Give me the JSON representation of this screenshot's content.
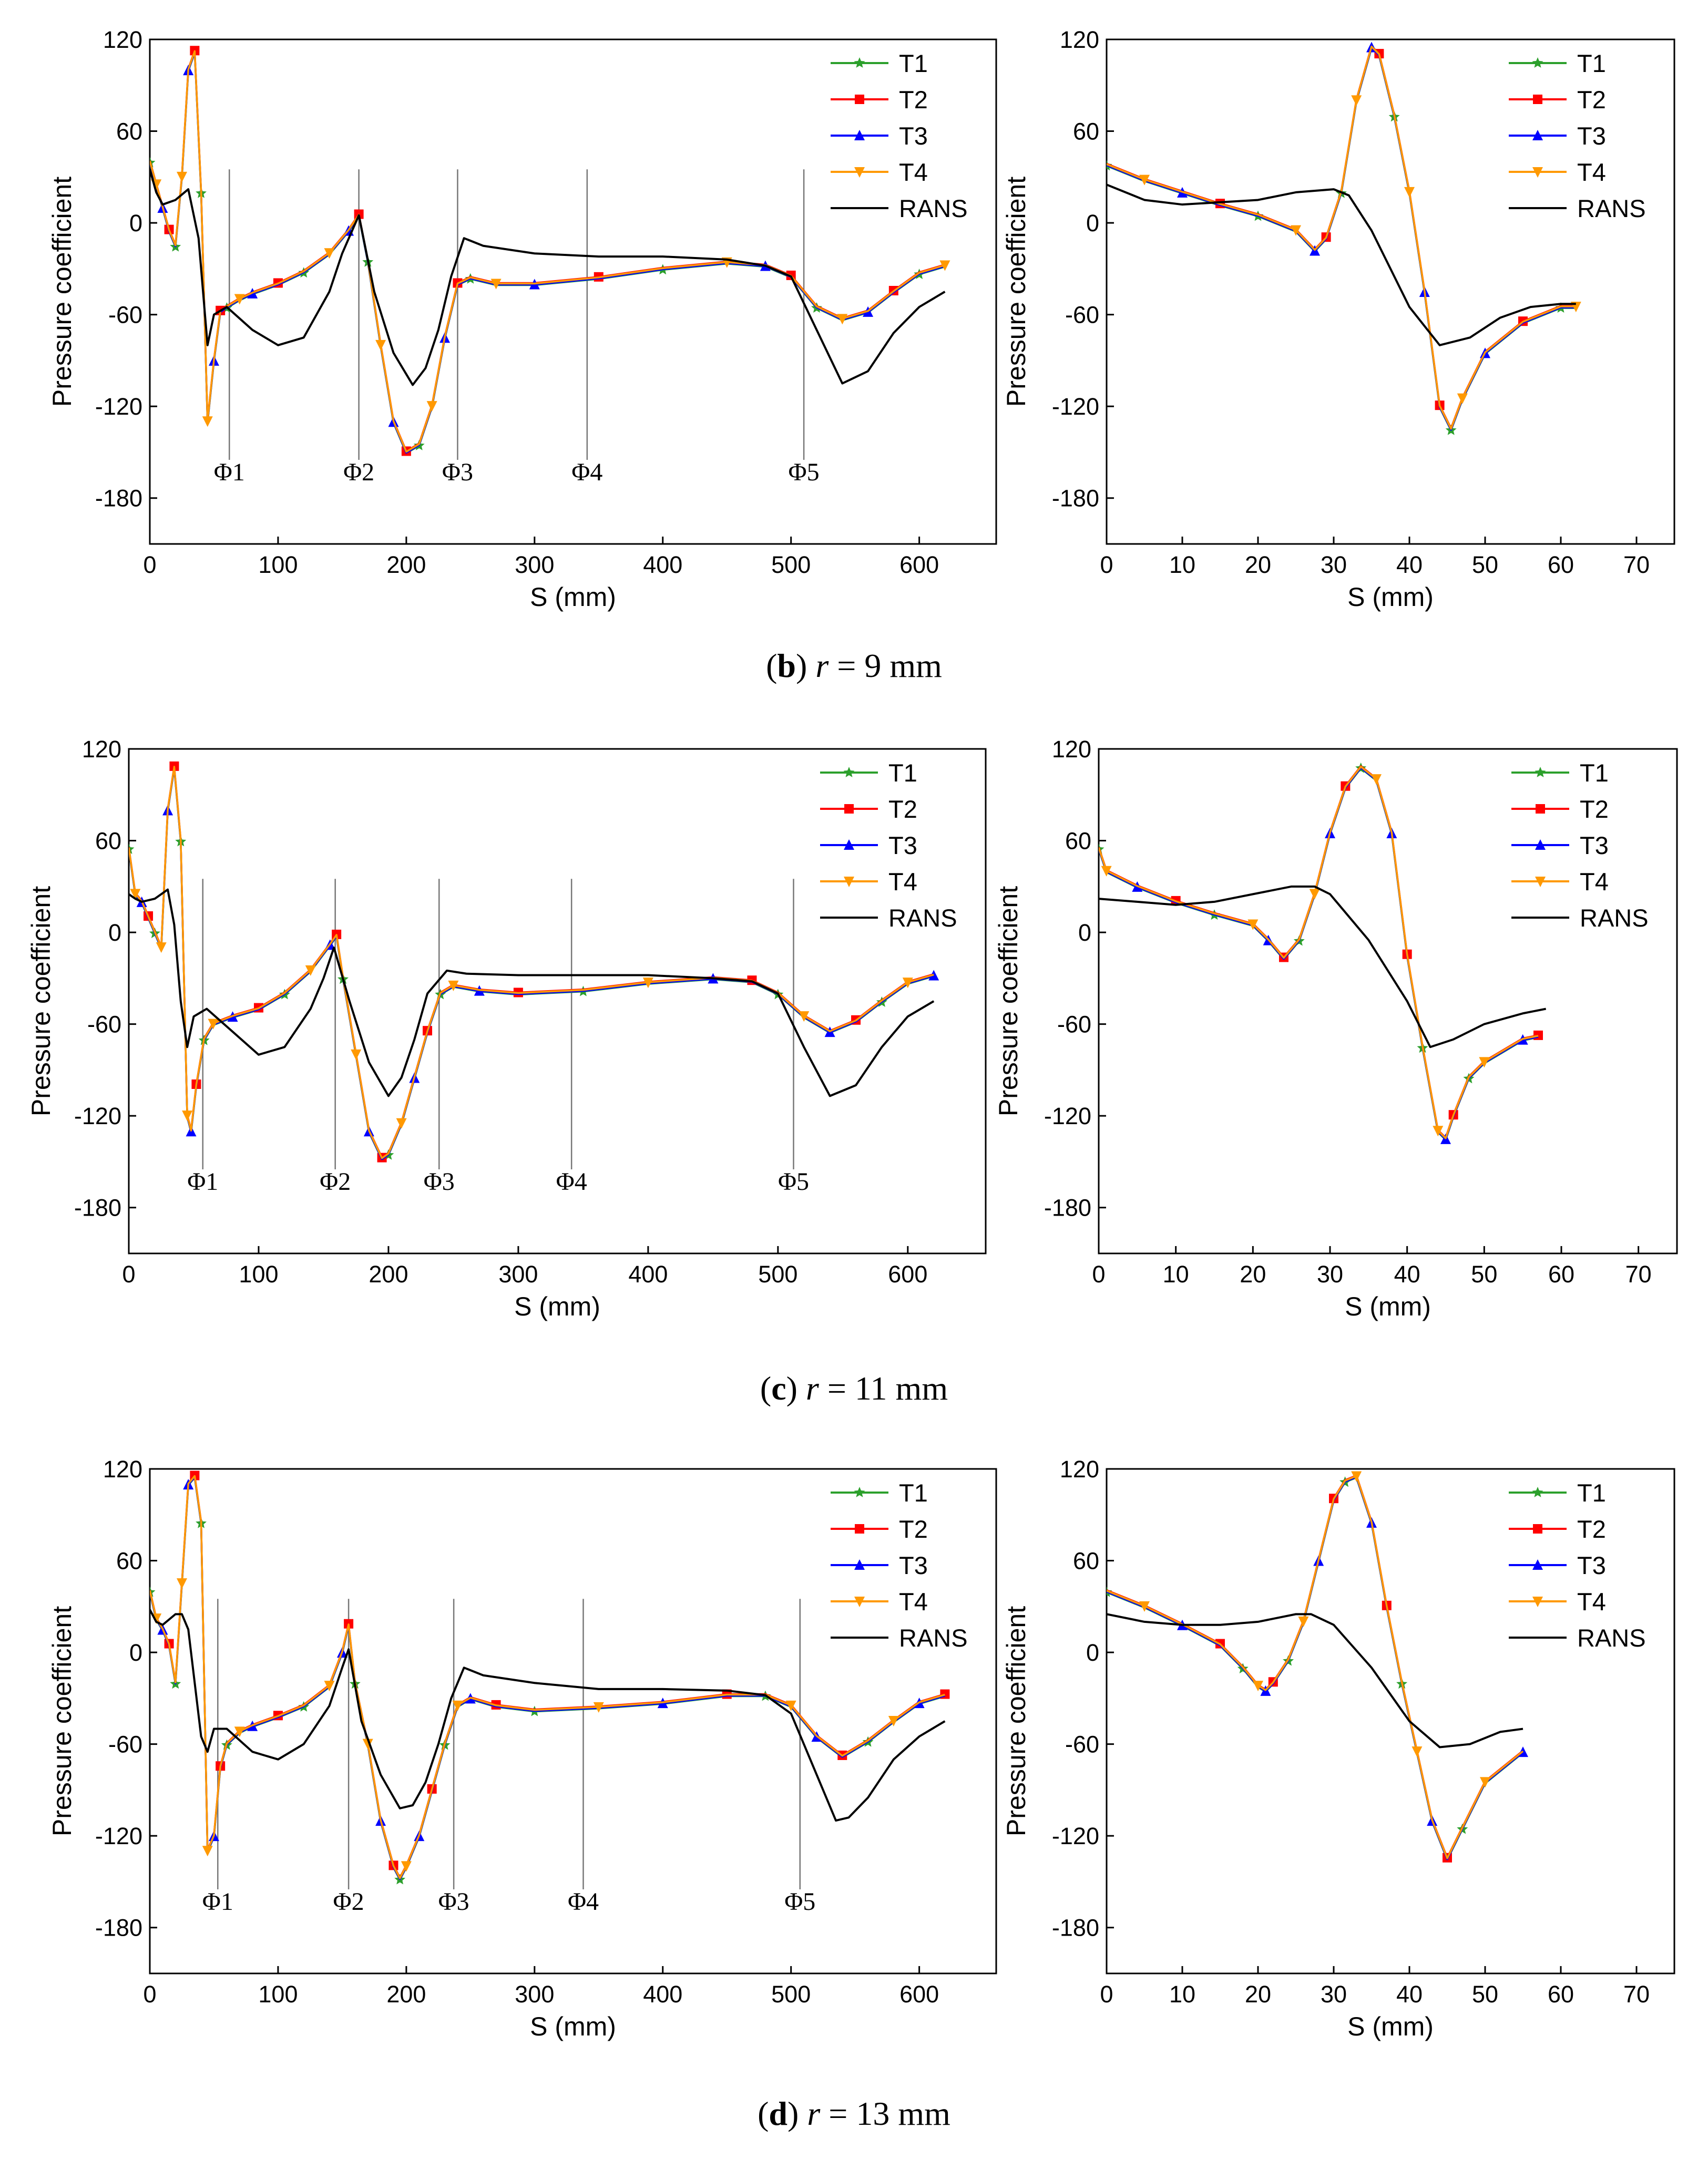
{
  "figure": {
    "captions": [
      {
        "label": "b",
        "var": "r",
        "rest": " = 9 mm"
      },
      {
        "label": "c",
        "var": "r",
        "rest": " = 11 mm"
      },
      {
        "label": "d",
        "var": "r",
        "rest": " = 13 mm"
      }
    ]
  },
  "colors": {
    "T1": "#2ca02c",
    "T2": "#ff0000",
    "T3": "#0000ff",
    "T4": "#ff9900",
    "RANS": "#000000",
    "marker_line": "#777777"
  },
  "chart_data": [
    {
      "id": "b-left",
      "type": "line",
      "xlabel": "S (mm)",
      "ylabel": "Pressure coefficient",
      "xlim": [
        0,
        660
      ],
      "ylim": [
        -210,
        120
      ],
      "xticks": [
        0,
        100,
        200,
        300,
        400,
        500,
        600
      ],
      "yticks": [
        120,
        60,
        0,
        -60,
        -120,
        -180
      ],
      "legend": [
        "T1",
        "T2",
        "T3",
        "T4",
        "RANS"
      ],
      "markers": [
        {
          "label": "Φ1",
          "x": 62
        },
        {
          "label": "Φ2",
          "x": 163
        },
        {
          "label": "Φ3",
          "x": 240
        },
        {
          "label": "Φ4",
          "x": 341
        },
        {
          "label": "Φ5",
          "x": 510
        }
      ],
      "series": [
        {
          "name": "T",
          "x": [
            0,
            5,
            10,
            15,
            20,
            25,
            30,
            35,
            40,
            45,
            50,
            55,
            60,
            70,
            80,
            100,
            120,
            140,
            155,
            163,
            170,
            180,
            190,
            200,
            210,
            220,
            230,
            240,
            250,
            270,
            300,
            350,
            400,
            450,
            480,
            500,
            520,
            540,
            560,
            580,
            600,
            620
          ],
          "y": [
            40,
            25,
            10,
            -5,
            -15,
            30,
            100,
            112,
            20,
            -130,
            -90,
            -58,
            -55,
            -50,
            -46,
            -40,
            -32,
            -20,
            -5,
            5,
            -25,
            -80,
            -130,
            -150,
            -145,
            -120,
            -75,
            -40,
            -36,
            -40,
            -40,
            -36,
            -30,
            -26,
            -28,
            -35,
            -55,
            -63,
            -58,
            -45,
            -33,
            -28
          ]
        },
        {
          "name": "RANS",
          "x": [
            0,
            5,
            10,
            20,
            30,
            38,
            45,
            50,
            60,
            80,
            100,
            120,
            140,
            150,
            163,
            175,
            190,
            205,
            215,
            225,
            235,
            245,
            260,
            300,
            350,
            400,
            450,
            480,
            500,
            520,
            540,
            560,
            580,
            600,
            620
          ],
          "y": [
            35,
            20,
            12,
            15,
            22,
            -10,
            -80,
            -60,
            -55,
            -70,
            -80,
            -75,
            -45,
            -20,
            5,
            -45,
            -85,
            -106,
            -95,
            -70,
            -35,
            -10,
            -15,
            -20,
            -22,
            -22,
            -24,
            -28,
            -35,
            -70,
            -105,
            -97,
            -72,
            -55,
            -45
          ]
        }
      ]
    },
    {
      "id": "b-right",
      "type": "line",
      "xlabel": "S (mm)",
      "ylabel": "Pressure coefficient",
      "xlim": [
        0,
        75
      ],
      "ylim": [
        -210,
        120
      ],
      "xticks": [
        0,
        10,
        20,
        30,
        40,
        50,
        60,
        70
      ],
      "yticks": [
        120,
        60,
        0,
        -60,
        -120,
        -180
      ],
      "legend": [
        "T1",
        "T2",
        "T3",
        "T4",
        "RANS"
      ],
      "markers": [],
      "series": [
        {
          "name": "T",
          "x": [
            0,
            5,
            10,
            15,
            20,
            25,
            27.5,
            29,
            31,
            33,
            35,
            36,
            38,
            40,
            42,
            44,
            45.5,
            47,
            50,
            55,
            60,
            62
          ],
          "y": [
            38,
            28,
            20,
            12,
            5,
            -5,
            -18,
            -10,
            20,
            80,
            115,
            110,
            70,
            20,
            -45,
            -120,
            -135,
            -115,
            -85,
            -65,
            -55,
            -55
          ]
        },
        {
          "name": "RANS",
          "x": [
            0,
            5,
            10,
            20,
            25,
            30,
            32,
            35,
            40,
            44,
            48,
            52,
            56,
            60,
            62
          ],
          "y": [
            25,
            15,
            12,
            15,
            20,
            22,
            18,
            -5,
            -55,
            -80,
            -75,
            -62,
            -55,
            -53,
            -53
          ]
        }
      ]
    },
    {
      "id": "c-left",
      "type": "line",
      "xlabel": "S (mm)",
      "ylabel": "Pressure coefficient",
      "xlim": [
        0,
        660
      ],
      "ylim": [
        -210,
        120
      ],
      "xticks": [
        0,
        100,
        200,
        300,
        400,
        500,
        600
      ],
      "yticks": [
        120,
        60,
        0,
        -60,
        -120,
        -180
      ],
      "legend": [
        "T1",
        "T2",
        "T3",
        "T4",
        "RANS"
      ],
      "markers": [
        {
          "label": "Φ1",
          "x": 57
        },
        {
          "label": "Φ2",
          "x": 159
        },
        {
          "label": "Φ3",
          "x": 239
        },
        {
          "label": "Φ4",
          "x": 341
        },
        {
          "label": "Φ5",
          "x": 512
        }
      ],
      "series": [
        {
          "name": "T",
          "x": [
            0,
            5,
            10,
            15,
            20,
            25,
            30,
            35,
            40,
            45,
            48,
            52,
            58,
            65,
            80,
            100,
            120,
            140,
            155,
            160,
            165,
            175,
            185,
            195,
            200,
            210,
            220,
            230,
            240,
            250,
            270,
            300,
            350,
            400,
            450,
            480,
            500,
            520,
            540,
            560,
            580,
            600,
            620
          ],
          "y": [
            55,
            25,
            20,
            10,
            0,
            -10,
            80,
            108,
            60,
            -120,
            -130,
            -100,
            -70,
            -60,
            -55,
            -50,
            -40,
            -25,
            -8,
            -2,
            -30,
            -80,
            -130,
            -148,
            -145,
            -125,
            -95,
            -65,
            -40,
            -35,
            -38,
            -40,
            -38,
            -33,
            -30,
            -32,
            -40,
            -55,
            -65,
            -58,
            -45,
            -33,
            -28
          ]
        },
        {
          "name": "RANS",
          "x": [
            0,
            5,
            10,
            20,
            30,
            35,
            40,
            45,
            50,
            60,
            80,
            100,
            120,
            140,
            150,
            158,
            170,
            185,
            200,
            210,
            220,
            230,
            245,
            260,
            300,
            350,
            400,
            450,
            480,
            500,
            520,
            540,
            560,
            580,
            600,
            620
          ],
          "y": [
            25,
            22,
            20,
            22,
            28,
            5,
            -45,
            -75,
            -55,
            -50,
            -65,
            -80,
            -75,
            -50,
            -30,
            -10,
            -45,
            -85,
            -107,
            -95,
            -70,
            -40,
            -25,
            -27,
            -28,
            -28,
            -28,
            -30,
            -32,
            -40,
            -75,
            -107,
            -100,
            -75,
            -55,
            -45
          ]
        }
      ]
    },
    {
      "id": "c-right",
      "type": "line",
      "xlabel": "S (mm)",
      "ylabel": "Pressure coefficient",
      "xlim": [
        0,
        75
      ],
      "ylim": [
        -210,
        120
      ],
      "xticks": [
        0,
        10,
        20,
        30,
        40,
        50,
        60,
        70
      ],
      "yticks": [
        120,
        60,
        0,
        -60,
        -120,
        -180
      ],
      "legend": [
        "T1",
        "T2",
        "T3",
        "T4",
        "RANS"
      ],
      "markers": [],
      "series": [
        {
          "name": "T",
          "x": [
            0,
            1,
            5,
            10,
            15,
            20,
            22,
            24,
            26,
            28,
            30,
            32,
            34,
            36,
            38,
            40,
            42,
            44,
            45,
            46,
            48,
            50,
            55,
            57
          ],
          "y": [
            55,
            40,
            30,
            20,
            12,
            5,
            -5,
            -17,
            -5,
            25,
            65,
            95,
            108,
            100,
            65,
            -15,
            -75,
            -130,
            -135,
            -120,
            -95,
            -85,
            -70,
            -68
          ]
        },
        {
          "name": "RANS",
          "x": [
            0,
            5,
            10,
            15,
            20,
            25,
            28,
            30,
            35,
            40,
            43,
            46,
            50,
            55,
            58
          ],
          "y": [
            22,
            20,
            18,
            20,
            25,
            30,
            30,
            25,
            -5,
            -45,
            -75,
            -70,
            -60,
            -53,
            -50
          ]
        }
      ]
    },
    {
      "id": "d-left",
      "type": "line",
      "xlabel": "S (mm)",
      "ylabel": "Pressure coefficient",
      "xlim": [
        0,
        660
      ],
      "ylim": [
        -210,
        120
      ],
      "xticks": [
        0,
        100,
        200,
        300,
        400,
        500,
        600
      ],
      "yticks": [
        120,
        60,
        0,
        -60,
        -120,
        -180
      ],
      "legend": [
        "T1",
        "T2",
        "T3",
        "T4",
        "RANS"
      ],
      "markers": [
        {
          "label": "Φ1",
          "x": 53
        },
        {
          "label": "Φ2",
          "x": 155
        },
        {
          "label": "Φ3",
          "x": 237
        },
        {
          "label": "Φ4",
          "x": 338
        },
        {
          "label": "Φ5",
          "x": 507
        }
      ],
      "series": [
        {
          "name": "T",
          "x": [
            0,
            5,
            10,
            15,
            20,
            25,
            30,
            35,
            40,
            45,
            50,
            55,
            60,
            70,
            80,
            100,
            120,
            140,
            150,
            155,
            160,
            170,
            180,
            190,
            195,
            200,
            210,
            220,
            230,
            240,
            250,
            270,
            300,
            350,
            400,
            450,
            480,
            500,
            520,
            540,
            560,
            580,
            600,
            620
          ],
          "y": [
            40,
            22,
            15,
            5,
            -20,
            45,
            110,
            115,
            85,
            -130,
            -120,
            -75,
            -60,
            -52,
            -48,
            -42,
            -35,
            -22,
            0,
            18,
            -20,
            -60,
            -110,
            -140,
            -148,
            -140,
            -120,
            -90,
            -60,
            -35,
            -30,
            -35,
            -38,
            -36,
            -33,
            -28,
            -28,
            -35,
            -55,
            -68,
            -58,
            -45,
            -33,
            -28
          ]
        },
        {
          "name": "RANS",
          "x": [
            0,
            5,
            10,
            20,
            25,
            30,
            35,
            40,
            45,
            50,
            60,
            80,
            100,
            120,
            140,
            150,
            155,
            165,
            180,
            195,
            205,
            215,
            225,
            235,
            245,
            260,
            300,
            350,
            400,
            450,
            480,
            500,
            520,
            535,
            545,
            560,
            580,
            600,
            620
          ],
          "y": [
            28,
            20,
            18,
            25,
            25,
            15,
            -20,
            -55,
            -65,
            -50,
            -50,
            -65,
            -70,
            -60,
            -35,
            -10,
            2,
            -45,
            -80,
            -102,
            -100,
            -85,
            -60,
            -30,
            -10,
            -15,
            -20,
            -24,
            -24,
            -25,
            -28,
            -40,
            -80,
            -110,
            -108,
            -95,
            -70,
            -55,
            -45
          ]
        }
      ]
    },
    {
      "id": "d-right",
      "type": "line",
      "xlabel": "S (mm)",
      "ylabel": "Pressure coefficient",
      "xlim": [
        0,
        75
      ],
      "ylim": [
        -210,
        120
      ],
      "xticks": [
        0,
        10,
        20,
        30,
        40,
        50,
        60,
        70
      ],
      "yticks": [
        120,
        60,
        0,
        -60,
        -120,
        -180
      ],
      "legend": [
        "T1",
        "T2",
        "T3",
        "T4",
        "RANS"
      ],
      "markers": [],
      "series": [
        {
          "name": "T",
          "x": [
            0,
            5,
            10,
            15,
            18,
            20,
            21,
            22,
            24,
            26,
            28,
            30,
            31.5,
            33,
            35,
            37,
            39,
            41,
            43,
            45,
            47,
            50,
            55
          ],
          "y": [
            40,
            30,
            18,
            5,
            -10,
            -22,
            -25,
            -20,
            -5,
            20,
            60,
            100,
            112,
            115,
            85,
            30,
            -20,
            -65,
            -110,
            -135,
            -115,
            -85,
            -65
          ]
        },
        {
          "name": "RANS",
          "x": [
            0,
            5,
            10,
            15,
            20,
            25,
            27,
            30,
            35,
            40,
            44,
            48,
            52,
            55
          ],
          "y": [
            25,
            20,
            18,
            18,
            20,
            25,
            25,
            18,
            -10,
            -45,
            -62,
            -60,
            -52,
            -50
          ]
        }
      ]
    }
  ]
}
